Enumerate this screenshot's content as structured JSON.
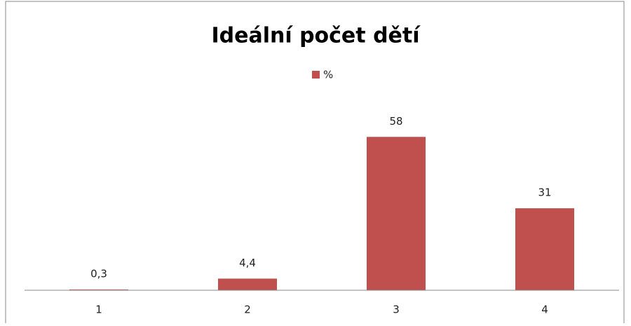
{
  "chart_data": {
    "type": "bar",
    "title": "Ideální počet dětí",
    "categories": [
      "1",
      "2",
      "3",
      "4"
    ],
    "series": [
      {
        "name": "%",
        "color": "#c0504d",
        "values": [
          0.3,
          4.4,
          58,
          31
        ],
        "value_labels": [
          "0,3",
          "4,4",
          "58",
          "31"
        ]
      }
    ],
    "ylim": [
      0,
      70
    ]
  }
}
